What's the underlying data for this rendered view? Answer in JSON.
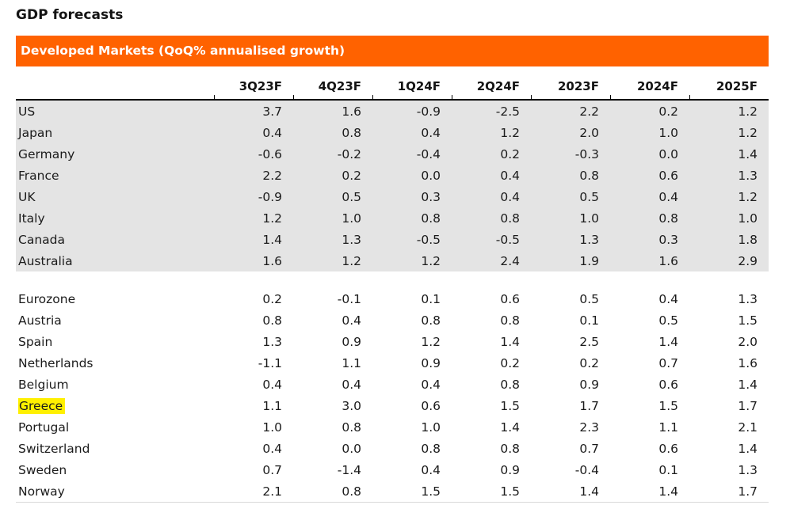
{
  "title": "GDP forecasts",
  "banner": "Developed Markets (QoQ% annualised growth)",
  "colors": {
    "banner_orange": "#FF6200",
    "banner_text": "#FFFFFF",
    "shaded_row_bg": "#E4E4E4",
    "highlight_yellow": "#FFF000",
    "header_rule": "#000000"
  },
  "chart_data": {
    "type": "table",
    "title": "GDP forecasts",
    "subtitle": "Developed Markets (QoQ% annualised growth)",
    "unit": "QoQ% annualised growth",
    "columns": [
      "3Q23F",
      "4Q23F",
      "1Q24F",
      "2Q24F",
      "2023F",
      "2024F",
      "2025F"
    ],
    "highlighted_row": "Greece",
    "groups": [
      {
        "name": "major-markets",
        "shaded": true,
        "rows": [
          {
            "label": "US",
            "values": [
              "3.7",
              "1.6",
              "-0.9",
              "-2.5",
              "2.2",
              "0.2",
              "1.2"
            ]
          },
          {
            "label": "Japan",
            "values": [
              "0.4",
              "0.8",
              "0.4",
              "1.2",
              "2.0",
              "1.0",
              "1.2"
            ]
          },
          {
            "label": "Germany",
            "values": [
              "-0.6",
              "-0.2",
              "-0.4",
              "0.2",
              "-0.3",
              "0.0",
              "1.4"
            ]
          },
          {
            "label": "France",
            "values": [
              "2.2",
              "0.2",
              "0.0",
              "0.4",
              "0.8",
              "0.6",
              "1.3"
            ]
          },
          {
            "label": "UK",
            "values": [
              "-0.9",
              "0.5",
              "0.3",
              "0.4",
              "0.5",
              "0.4",
              "1.2"
            ]
          },
          {
            "label": "Italy",
            "values": [
              "1.2",
              "1.0",
              "0.8",
              "0.8",
              "1.0",
              "0.8",
              "1.0"
            ]
          },
          {
            "label": "Canada",
            "values": [
              "1.4",
              "1.3",
              "-0.5",
              "-0.5",
              "1.3",
              "0.3",
              "1.8"
            ]
          },
          {
            "label": "Australia",
            "values": [
              "1.6",
              "1.2",
              "1.2",
              "2.4",
              "1.9",
              "1.6",
              "2.9"
            ]
          }
        ]
      },
      {
        "name": "european-markets",
        "shaded": false,
        "rows": [
          {
            "label": "Eurozone",
            "values": [
              "0.2",
              "-0.1",
              "0.1",
              "0.6",
              "0.5",
              "0.4",
              "1.3"
            ]
          },
          {
            "label": "Austria",
            "values": [
              "0.8",
              "0.4",
              "0.8",
              "0.8",
              "0.1",
              "0.5",
              "1.5"
            ]
          },
          {
            "label": "Spain",
            "values": [
              "1.3",
              "0.9",
              "1.2",
              "1.4",
              "2.5",
              "1.4",
              "2.0"
            ]
          },
          {
            "label": "Netherlands",
            "values": [
              "-1.1",
              "1.1",
              "0.9",
              "0.2",
              "0.2",
              "0.7",
              "1.6"
            ]
          },
          {
            "label": "Belgium",
            "values": [
              "0.4",
              "0.4",
              "0.4",
              "0.8",
              "0.9",
              "0.6",
              "1.4"
            ]
          },
          {
            "label": "Greece",
            "values": [
              "1.1",
              "3.0",
              "0.6",
              "1.5",
              "1.7",
              "1.5",
              "1.7"
            ]
          },
          {
            "label": "Portugal",
            "values": [
              "1.0",
              "0.8",
              "1.0",
              "1.4",
              "2.3",
              "1.1",
              "2.1"
            ]
          },
          {
            "label": "Switzerland",
            "values": [
              "0.4",
              "0.0",
              "0.8",
              "0.8",
              "0.7",
              "0.6",
              "1.4"
            ]
          },
          {
            "label": "Sweden",
            "values": [
              "0.7",
              "-1.4",
              "0.4",
              "0.9",
              "-0.4",
              "0.1",
              "1.3"
            ]
          },
          {
            "label": "Norway",
            "values": [
              "2.1",
              "0.8",
              "1.5",
              "1.5",
              "1.4",
              "1.4",
              "1.7"
            ]
          }
        ]
      }
    ]
  }
}
